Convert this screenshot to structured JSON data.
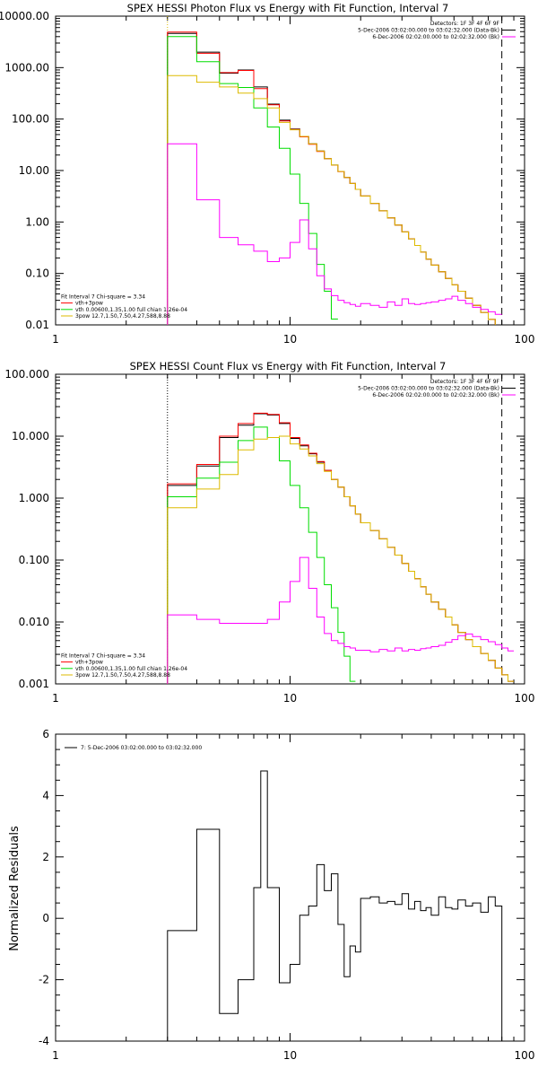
{
  "chart_data": [
    {
      "type": "line",
      "title": "SPEX HESSI Photon Flux vs Energy with Fit Function, Interval 7",
      "xlabel": "",
      "ylabel": "",
      "xscale": "log",
      "yscale": "log",
      "xlim": [
        1,
        100
      ],
      "ylim": [
        0.01,
        10000
      ],
      "x_tick_labels": [
        "1",
        "10",
        "100"
      ],
      "y_tick_labels": [
        "0.01",
        "0.10",
        "1.00",
        "10.00",
        "100.00",
        "1000.00",
        "10000.00"
      ],
      "legend_top_right": [
        {
          "label": "Detectors: 1F 3F 4F 6F 9F",
          "color": ""
        },
        {
          "label": "5-Dec-2006 03:02:00.000 to 03:02:32.000 (Data-Bk)",
          "color": "#000000"
        },
        {
          "label": "6-Dec-2006 02:02:00.000 to 02:02:32.000 (Bk)",
          "color": "#ff00ff"
        }
      ],
      "legend_bottom_left": [
        {
          "label": "Fit Interval 7   Chi-square = 3.34",
          "color": ""
        },
        {
          "label": "vth+3pow",
          "color": "#ff0000"
        },
        {
          "label": "vth 0.00600,1.35,1.00  full chian 1.26e-04",
          "color": "#00dd00"
        },
        {
          "label": "3pow 12.7,1.50,7.50,4.27,588,8.88",
          "color": "#ddbb00"
        }
      ],
      "vlines": [
        {
          "x": 3,
          "style": "dotted",
          "color": "#ddbb00"
        },
        {
          "x": 80,
          "style": "dashed",
          "color": "#000000"
        }
      ],
      "bin_edges": [
        3,
        4,
        5,
        6,
        7,
        8,
        9,
        10,
        11,
        12,
        13,
        14,
        15,
        16,
        17,
        18,
        19,
        20,
        22,
        24,
        26,
        28,
        30,
        32,
        34,
        36,
        38,
        40,
        43,
        46,
        49,
        52,
        56,
        60,
        65,
        70,
        75,
        80
      ],
      "series": [
        {
          "name": "Data-Bk",
          "color": "#000000",
          "values": [
            4600,
            2000,
            780,
            900,
            420,
            195,
            95,
            64,
            46,
            33,
            24,
            17,
            12.8,
            9.6,
            7.3,
            5.6,
            4.3,
            3.2,
            2.3,
            1.65,
            1.2,
            0.87,
            0.64,
            0.47,
            0.35,
            0.26,
            0.19,
            0.145,
            0.108,
            0.08,
            0.06,
            0.045,
            0.033,
            0.024,
            0.0175,
            0.0128,
            0.0094
          ]
        },
        {
          "name": "vth+3pow",
          "color": "#ff0000",
          "values": [
            4900,
            1900,
            800,
            880,
            390,
            190,
            92,
            63,
            45,
            32.5,
            23.5,
            17,
            12.7,
            9.5,
            7.3,
            5.6,
            4.3,
            3.2,
            2.3,
            1.65,
            1.2,
            0.87,
            0.64,
            0.47,
            0.35,
            0.26,
            0.19,
            0.145,
            0.108,
            0.08,
            0.06,
            0.045,
            0.033,
            0.024,
            0.0175,
            0.0128,
            0.0094
          ]
        },
        {
          "name": "vth",
          "color": "#00dd00",
          "values": [
            4000,
            1300,
            490,
            410,
            165,
            70,
            27,
            8.5,
            2.3,
            0.6,
            0.15,
            0.045,
            0.013
          ]
        },
        {
          "name": "3pow",
          "color": "#ddbb00",
          "values": [
            700,
            520,
            420,
            320,
            250,
            165,
            86,
            62,
            46,
            33,
            24,
            17,
            12.8,
            9.6,
            7.3,
            5.6,
            4.3,
            3.2,
            2.3,
            1.65,
            1.2,
            0.87,
            0.64,
            0.47,
            0.35,
            0.26,
            0.19,
            0.145,
            0.108,
            0.08,
            0.06,
            0.045,
            0.033,
            0.024,
            0.0175,
            0.0128,
            0.0094
          ]
        },
        {
          "name": "Bk",
          "color": "#ff00ff",
          "values": [
            33,
            2.7,
            0.5,
            0.36,
            0.27,
            0.17,
            0.2,
            0.4,
            1.1,
            0.3,
            0.09,
            0.05,
            0.037,
            0.03,
            0.027,
            0.025,
            0.023,
            0.026,
            0.024,
            0.022,
            0.028,
            0.024,
            0.032,
            0.026,
            0.025,
            0.026,
            0.027,
            0.028,
            0.03,
            0.032,
            0.036,
            0.03,
            0.026,
            0.022,
            0.02,
            0.018,
            0.016
          ]
        }
      ]
    },
    {
      "type": "line",
      "title": "SPEX HESSI Count Flux vs Energy with Fit Function, Interval 7",
      "xlabel": "",
      "ylabel": "",
      "xscale": "log",
      "yscale": "log",
      "xlim": [
        1,
        100
      ],
      "ylim": [
        0.001,
        100
      ],
      "x_tick_labels": [
        "1",
        "10",
        "100"
      ],
      "y_tick_labels": [
        "0.001",
        "0.010",
        "0.100",
        "1.000",
        "10.000",
        "100.000"
      ],
      "legend_top_right": [
        {
          "label": "Detectors: 1F 3F 4F 6F 9F",
          "color": ""
        },
        {
          "label": "5-Dec-2006 03:02:00.000 to 03:02:32.000 (Data-Bk)",
          "color": "#000000"
        },
        {
          "label": "6-Dec-2006 02:02:00.000 to 02:02:32.000 (Bk)",
          "color": "#ff00ff"
        }
      ],
      "legend_bottom_left": [
        {
          "label": "Fit Interval 7   Chi-square = 3.34",
          "color": ""
        },
        {
          "label": "vth+3pow",
          "color": "#ff0000"
        },
        {
          "label": "vth 0.00600,1.35,1.00  full chian 1.26e-04",
          "color": "#00dd00"
        },
        {
          "label": "3pow 12.7,1.50,7.50,4.27,588,8.88",
          "color": "#ddbb00"
        }
      ],
      "vlines": [
        {
          "x": 3,
          "style": "dotted",
          "color": "#000000"
        },
        {
          "x": 80,
          "style": "dashed",
          "color": "#000000"
        }
      ],
      "bin_edges": [
        3,
        4,
        5,
        6,
        7,
        8,
        9,
        10,
        11,
        12,
        13,
        14,
        15,
        16,
        17,
        18,
        19,
        20,
        22,
        24,
        26,
        28,
        30,
        32,
        34,
        36,
        38,
        40,
        43,
        46,
        49,
        52,
        56,
        60,
        65,
        70,
        75,
        80,
        85,
        90
      ],
      "series": [
        {
          "name": "Data-Bk",
          "color": "#000000",
          "values": [
            1.6,
            3.3,
            9.5,
            15,
            23,
            22,
            16,
            9.2,
            7.0,
            5.2,
            3.8,
            2.8,
            2.0,
            1.5,
            1.05,
            0.75,
            0.55,
            0.4,
            0.3,
            0.22,
            0.16,
            0.12,
            0.088,
            0.066,
            0.05,
            0.037,
            0.028,
            0.021,
            0.016,
            0.012,
            0.009,
            0.0068,
            0.0052,
            0.004,
            0.0031,
            0.0024,
            0.0018,
            0.0014,
            0.0011
          ]
        },
        {
          "name": "vth+3pow",
          "color": "#ff0000",
          "values": [
            1.7,
            3.5,
            10,
            16,
            23.5,
            22.5,
            16.5,
            9.5,
            7.2,
            5.3,
            3.9,
            2.8,
            2.0,
            1.5,
            1.05,
            0.75,
            0.55,
            0.4,
            0.3,
            0.22,
            0.16,
            0.12,
            0.088,
            0.066,
            0.05,
            0.037,
            0.028,
            0.021,
            0.016,
            0.012,
            0.009,
            0.0068,
            0.0052,
            0.004,
            0.0031,
            0.0024,
            0.0018,
            0.0014,
            0.0011
          ]
        },
        {
          "name": "vth",
          "color": "#00dd00",
          "values": [
            1.05,
            2.1,
            3.8,
            8.5,
            14,
            9.5,
            4.0,
            1.6,
            0.7,
            0.28,
            0.11,
            0.04,
            0.017,
            0.0068,
            0.0028,
            0.0011
          ]
        },
        {
          "name": "3pow",
          "color": "#ddbb00",
          "values": [
            0.7,
            1.4,
            2.4,
            6.0,
            9.0,
            9.5,
            10,
            7.5,
            6.2,
            4.8,
            3.6,
            2.7,
            2.0,
            1.5,
            1.05,
            0.75,
            0.55,
            0.4,
            0.3,
            0.22,
            0.16,
            0.12,
            0.088,
            0.066,
            0.05,
            0.037,
            0.028,
            0.021,
            0.016,
            0.012,
            0.009,
            0.0068,
            0.0052,
            0.004,
            0.0031,
            0.0024,
            0.0018,
            0.0014,
            0.0011
          ]
        },
        {
          "name": "Bk",
          "color": "#ff00ff",
          "values": [
            0.013,
            0.011,
            0.0095,
            0.0095,
            0.0095,
            0.011,
            0.021,
            0.045,
            0.11,
            0.035,
            0.012,
            0.0065,
            0.005,
            0.0045,
            0.004,
            0.0038,
            0.0035,
            0.0035,
            0.0033,
            0.0036,
            0.0034,
            0.0038,
            0.0034,
            0.0036,
            0.0035,
            0.0037,
            0.0038,
            0.004,
            0.0042,
            0.0047,
            0.0052,
            0.006,
            0.0064,
            0.0058,
            0.0052,
            0.0048,
            0.0043,
            0.0038,
            0.0034
          ]
        }
      ]
    },
    {
      "type": "line",
      "title": "",
      "xlabel": "",
      "ylabel": "Normalized Residuals",
      "xscale": "log",
      "yscale": "linear",
      "xlim": [
        1,
        100
      ],
      "ylim": [
        -4,
        6
      ],
      "x_tick_labels": [
        "1",
        "10",
        "100"
      ],
      "y_tick_labels": [
        "-4",
        "-2",
        "0",
        "2",
        "4",
        "6"
      ],
      "legend_top_left": [
        {
          "label": "7: 5-Dec-2006 03:02:00.000 to 03:02:32.000",
          "color": "#000000"
        }
      ],
      "bin_edges": [
        3,
        4,
        4.5,
        5,
        6,
        7,
        7.5,
        8,
        9,
        10,
        11,
        12,
        13,
        14,
        15,
        16,
        17,
        18,
        19,
        20,
        22,
        24,
        26,
        28,
        30,
        32,
        34,
        36,
        38,
        40,
        43,
        46,
        49,
        52,
        56,
        60,
        65,
        70,
        75,
        80
      ],
      "series": [
        {
          "name": "7: 5-Dec-2006 03:02:00.000 to 03:02:32.000",
          "color": "#000000",
          "values": [
            -0.4,
            2.9,
            2.9,
            -3.1,
            -2.0,
            1.0,
            4.8,
            1.0,
            -2.1,
            -1.5,
            0.1,
            0.4,
            1.75,
            0.9,
            1.45,
            -0.2,
            -1.9,
            -0.9,
            -1.1,
            0.65,
            0.7,
            0.5,
            0.55,
            0.45,
            0.8,
            0.3,
            0.55,
            0.25,
            0.35,
            0.1,
            0.7,
            0.35,
            0.3,
            0.6,
            0.4,
            0.5,
            0.2,
            0.7,
            0.4
          ]
        }
      ]
    }
  ]
}
